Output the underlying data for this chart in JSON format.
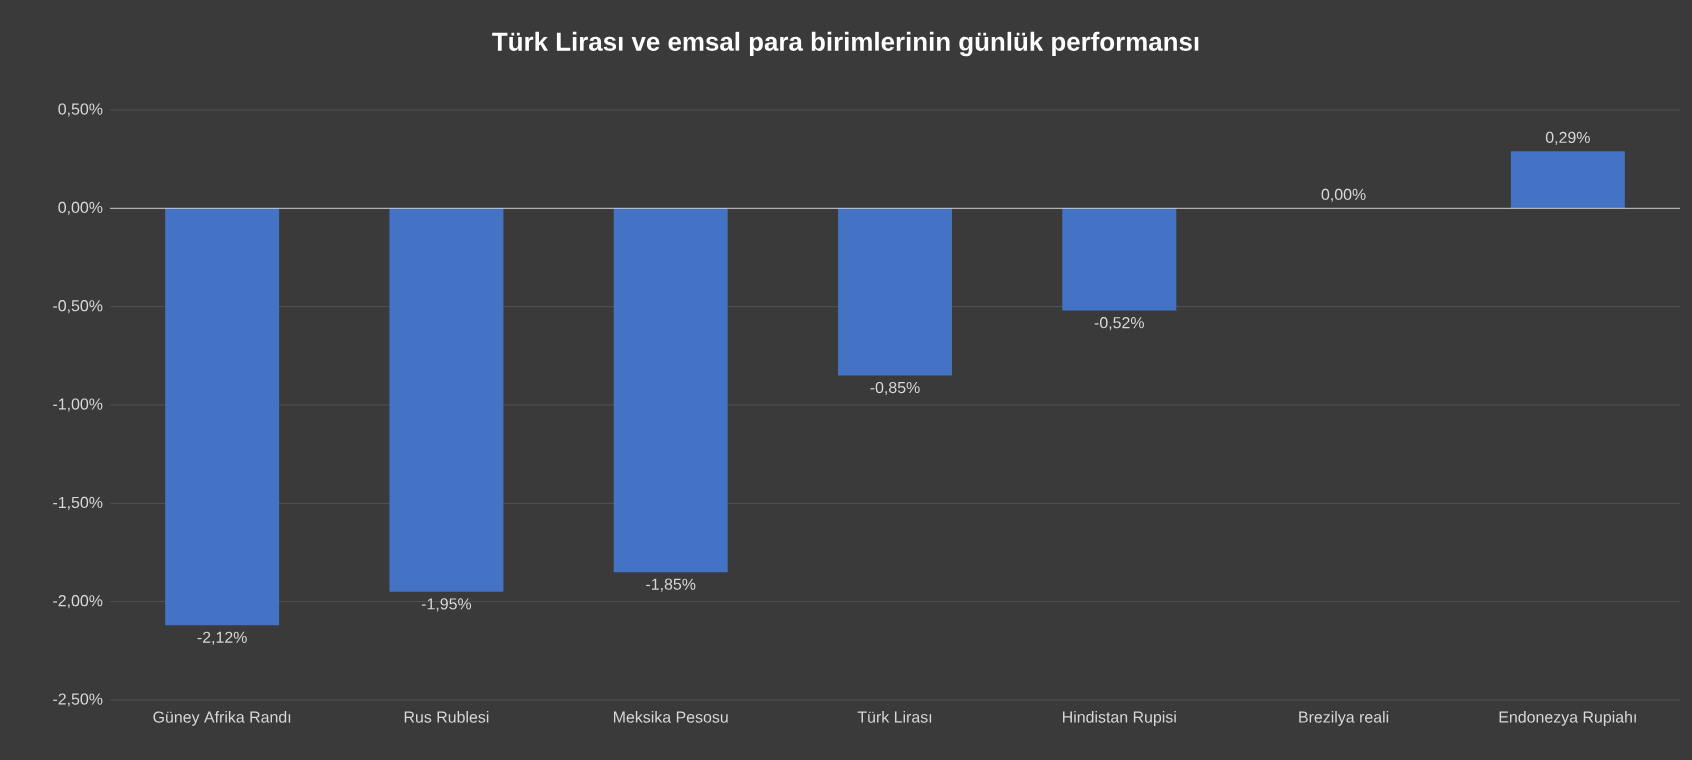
{
  "chart_data": {
    "type": "bar",
    "title": "Türk Lirası ve emsal para birimlerinin günlük performansı",
    "categories": [
      "Güney Afrika Randı",
      "Rus Rublesi",
      "Meksika Pesosu",
      "Türk Lirası",
      "Hindistan Rupisi",
      "Brezilya reali",
      "Endonezya Rupiahı"
    ],
    "values": [
      -2.12,
      -1.95,
      -1.85,
      -0.85,
      -0.52,
      0.0,
      0.29
    ],
    "value_labels": [
      "-2,12%",
      "-1,95%",
      "-1,85%",
      "-0,85%",
      "-0,52%",
      "0,00%",
      "0,29%"
    ],
    "color": "#4472c4",
    "ylim": [
      -2.5,
      0.5
    ],
    "yticks": [
      {
        "value": 0.5,
        "label": "0,50%"
      },
      {
        "value": 0.0,
        "label": "0,00%"
      },
      {
        "value": -0.5,
        "label": "-0,50%"
      },
      {
        "value": -1.0,
        "label": "-1,00%"
      },
      {
        "value": -1.5,
        "label": "-1,50%"
      },
      {
        "value": -2.0,
        "label": "-2,00%"
      },
      {
        "value": -2.5,
        "label": "-2,50%"
      }
    ],
    "grid": "y"
  }
}
